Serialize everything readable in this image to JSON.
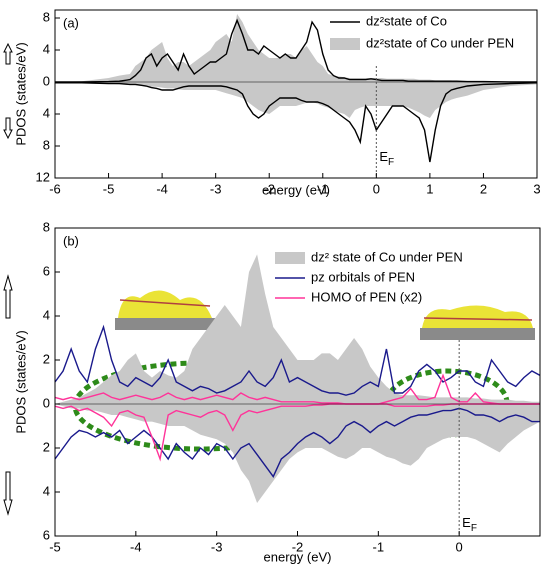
{
  "chart_data": [
    {
      "type": "pdos",
      "panel_label": "(a)",
      "xlabel": "energy (eV)",
      "ylabel": "PDOS (states/eV)",
      "xlim": [
        -6,
        3
      ],
      "ylim": [
        -12,
        9
      ],
      "xticks": [
        -6,
        -5,
        -4,
        -3,
        -2,
        -1,
        0,
        1,
        2,
        3
      ],
      "yticks": [
        8,
        4,
        0,
        {
          "value": -4,
          "label": "4"
        },
        {
          "value": -8,
          "label": "8"
        },
        {
          "value": -12,
          "label": "12"
        }
      ],
      "fermi_x": 0,
      "fermi_label": [
        "E",
        "F"
      ],
      "legend": "upper right",
      "x": [
        -6,
        -5.5,
        -5,
        -4.8,
        -4.6,
        -4.5,
        -4.4,
        -4.3,
        -4.2,
        -4.1,
        -4.0,
        -3.9,
        -3.8,
        -3.7,
        -3.6,
        -3.5,
        -3.4,
        -3.3,
        -3.2,
        -3.1,
        -3.0,
        -2.9,
        -2.8,
        -2.7,
        -2.6,
        -2.5,
        -2.4,
        -2.3,
        -2.2,
        -2.1,
        -2.0,
        -1.9,
        -1.8,
        -1.7,
        -1.6,
        -1.5,
        -1.4,
        -1.3,
        -1.2,
        -1.1,
        -1.0,
        -0.9,
        -0.8,
        -0.7,
        -0.6,
        -0.5,
        -0.4,
        -0.3,
        -0.2,
        -0.1,
        0,
        0.1,
        0.2,
        0.3,
        0.4,
        0.5,
        0.6,
        0.7,
        0.8,
        0.9,
        1.0,
        1.1,
        1.2,
        1.3,
        1.4,
        1.5,
        1.7,
        2,
        2.5,
        3
      ],
      "series": [
        {
          "name": "dz²state of Co under PEN",
          "color": "#c8c8c8",
          "style": "fill",
          "up": [
            0,
            0.1,
            0.5,
            0.8,
            1,
            2,
            2.5,
            3,
            4,
            4.5,
            5,
            3,
            2,
            2.5,
            2.5,
            2,
            2.5,
            3,
            3.5,
            4,
            5,
            5.5,
            6,
            5,
            8.5,
            7.5,
            6,
            5,
            4,
            3.5,
            3,
            3,
            3,
            3.5,
            3.5,
            3,
            4,
            4.5,
            3.5,
            2.5,
            2,
            1,
            0.8,
            0.7,
            0.6,
            0.5,
            0.5,
            0.5,
            0.5,
            0.5,
            0.5,
            0.5,
            0.4,
            0.4,
            0.4,
            0.4,
            0.4,
            0.4,
            0.3,
            0.3,
            0.3,
            0.2,
            0.2,
            0.2,
            0.2,
            0.1,
            0.1,
            0.1,
            0.05,
            0
          ],
          "down": [
            0,
            -0.1,
            -0.2,
            -0.3,
            -0.4,
            -0.4,
            -0.5,
            -0.5,
            -0.6,
            -0.6,
            -0.7,
            -0.8,
            -0.8,
            -0.9,
            -1,
            -1,
            -1,
            -1,
            -1,
            -1,
            -1,
            -1.2,
            -1.4,
            -1.6,
            -1.8,
            -2,
            -2.5,
            -3,
            -3.5,
            -3.8,
            -4,
            -3.5,
            -3,
            -3,
            -3,
            -3,
            -2.8,
            -2.6,
            -2.5,
            -2.7,
            -3,
            -3.2,
            -3.5,
            -3.8,
            -4,
            -4.5,
            -3.5,
            -3.2,
            -3,
            -3,
            -3,
            -3,
            -3,
            -3,
            -3,
            -3,
            -3.2,
            -3.5,
            -3.8,
            -4.2,
            -4.5,
            -3.5,
            -3,
            -2.5,
            -2.2,
            -2,
            -1.7,
            -1,
            -0.5,
            -0.3
          ]
        },
        {
          "name": "dz²state of Co",
          "color": "#000000",
          "style": "line",
          "up": [
            0,
            0,
            0.05,
            0.1,
            0.3,
            0.8,
            1.5,
            3,
            3.5,
            2,
            3,
            3.5,
            2.5,
            1.5,
            3.5,
            2,
            1,
            1.5,
            2,
            2.5,
            2.5,
            3,
            3.5,
            6,
            7.7,
            6,
            4,
            4,
            3.5,
            4.5,
            4,
            3.5,
            3,
            3.5,
            3,
            3,
            4,
            5,
            7.5,
            6.5,
            3.5,
            1.5,
            0.8,
            0.5,
            0.5,
            0.3,
            0.3,
            0.3,
            0.3,
            0.4,
            0.3,
            0.2,
            0.2,
            0.2,
            0.2,
            0.2,
            0.1,
            0.1,
            0.1,
            0.1,
            0.1,
            0.1,
            0.1,
            0.1,
            0.1,
            0.1,
            0.05,
            0.05,
            0,
            0
          ],
          "down": [
            -0.1,
            -0.1,
            -0.2,
            -0.2,
            -0.3,
            -0.3,
            -0.4,
            -0.5,
            -0.7,
            -0.8,
            -1,
            -1,
            -1,
            -0.8,
            -0.6,
            -0.5,
            -0.5,
            -0.5,
            -0.5,
            -0.5,
            -0.5,
            -0.5,
            -0.6,
            -0.8,
            -1,
            -1.5,
            -3,
            -4,
            -4.5,
            -4,
            -3,
            -2.5,
            -2,
            -2,
            -2,
            -2,
            -2.3,
            -2.5,
            -2.5,
            -2.5,
            -2.7,
            -3,
            -3.5,
            -4,
            -4.5,
            -5,
            -6,
            -7.5,
            -3,
            -4,
            -6,
            -5,
            -4,
            -3,
            -3,
            -3,
            -3.5,
            -4,
            -4.5,
            -6,
            -10,
            -6,
            -3,
            -1.5,
            -1,
            -0.8,
            -0.5,
            -0.3,
            -0.2,
            -0.1
          ]
        }
      ]
    },
    {
      "type": "pdos",
      "panel_label": "(b)",
      "xlabel": "energy (eV)",
      "ylabel": "PDOS (states/eV)",
      "xlim": [
        -5,
        1
      ],
      "ylim": [
        -6,
        8
      ],
      "xticks": [
        -5,
        -4,
        -3,
        -2,
        -1,
        0
      ],
      "yticks": [
        8,
        6,
        4,
        2,
        0,
        {
          "value": -2,
          "label": "2"
        },
        {
          "value": -4,
          "label": "4"
        },
        {
          "value": -6,
          "label": "6"
        }
      ],
      "fermi_x": 0,
      "fermi_label": [
        "E",
        "F"
      ],
      "legend": "upper right",
      "x": [
        -5.0,
        -4.9,
        -4.8,
        -4.7,
        -4.6,
        -4.5,
        -4.4,
        -4.3,
        -4.2,
        -4.1,
        -4.0,
        -3.9,
        -3.8,
        -3.7,
        -3.6,
        -3.5,
        -3.4,
        -3.3,
        -3.2,
        -3.1,
        -3.0,
        -2.9,
        -2.8,
        -2.7,
        -2.6,
        -2.5,
        -2.4,
        -2.3,
        -2.2,
        -2.1,
        -2.0,
        -1.9,
        -1.8,
        -1.7,
        -1.6,
        -1.5,
        -1.4,
        -1.3,
        -1.2,
        -1.1,
        -1.0,
        -0.9,
        -0.8,
        -0.7,
        -0.6,
        -0.5,
        -0.4,
        -0.3,
        -0.2,
        -0.1,
        0,
        0.1,
        0.2,
        0.3,
        0.4,
        0.5,
        0.6,
        0.7,
        0.8,
        0.9,
        1.0
      ],
      "series": [
        {
          "name": "dz² state of Co under PEN",
          "color": "#c8c8c8",
          "style": "fill",
          "up": [
            0,
            0.1,
            0.2,
            0.3,
            0.5,
            0.7,
            1,
            1.3,
            1.5,
            2,
            2.3,
            1.5,
            1.2,
            1.5,
            1.3,
            1.2,
            1.5,
            2.5,
            3,
            3.5,
            4,
            4.5,
            4,
            3.5,
            6,
            6.8,
            5,
            3.5,
            3,
            2.5,
            2,
            2,
            2,
            2.3,
            2.3,
            2,
            2.5,
            3,
            2.5,
            1.7,
            1.2,
            0.8,
            0.5,
            0.4,
            0.4,
            0.4,
            0.35,
            0.3,
            0.3,
            0.3,
            0.3,
            0.3,
            0.25,
            0.25,
            0.2,
            0.2,
            0.2,
            0.15,
            0.15,
            0.1,
            0.1
          ],
          "down": [
            0,
            -0.1,
            -0.2,
            -0.2,
            -0.3,
            -0.3,
            -0.4,
            -0.5,
            -0.5,
            -0.6,
            -0.7,
            -0.8,
            -0.8,
            -0.9,
            -1,
            -1,
            -1,
            -1.2,
            -1.4,
            -1.5,
            -1.6,
            -1.8,
            -2.2,
            -3,
            -3.5,
            -4.5,
            -4,
            -3.5,
            -3,
            -2.5,
            -2.2,
            -2,
            -2,
            -2,
            -2.2,
            -2.4,
            -2.5,
            -2.3,
            -2,
            -2,
            -2.2,
            -2.4,
            -2.5,
            -2.7,
            -2.8,
            -2.5,
            -2,
            -1.8,
            -1.6,
            -1.5,
            -1.5,
            -1.5,
            -1.6,
            -1.8,
            -2,
            -2.2,
            -1.8,
            -1.5,
            -1.2,
            -1,
            -0.8
          ]
        },
        {
          "name": "pz orbitals of PEN",
          "color": "#1a1a8c",
          "style": "line",
          "up": [
            1,
            1.5,
            2.5,
            1.5,
            1,
            2.5,
            3.5,
            2,
            1,
            0.8,
            1.2,
            1,
            0.8,
            1.2,
            2,
            1,
            0.8,
            0.6,
            0.8,
            0.7,
            0.5,
            0.6,
            0.8,
            1,
            1.5,
            1,
            0.8,
            1.2,
            2,
            1,
            1.2,
            1,
            0.8,
            0.6,
            0.5,
            0.5,
            0.4,
            0.5,
            0.8,
            1,
            0.8,
            2.5,
            0.5,
            0.5,
            0.8,
            1.5,
            1.8,
            1.5,
            1,
            1.2,
            1.5,
            1.5,
            1,
            0.8,
            2,
            1.5,
            1,
            0.8,
            1.2,
            1.5,
            1.3
          ],
          "down": [
            -2.5,
            -2,
            -1.5,
            -1.2,
            -1.3,
            -1.5,
            -1.3,
            -1.5,
            -1.2,
            -1.8,
            -1.5,
            -1.2,
            -1.5,
            -2,
            -2.5,
            -1.8,
            -2.2,
            -2.5,
            -2,
            -2.3,
            -1.8,
            -2,
            -2.5,
            -2,
            -1.8,
            -2.3,
            -2.8,
            -3.3,
            -2.5,
            -2.2,
            -1.8,
            -1.5,
            -1.3,
            -1.5,
            -1.8,
            -1.5,
            -1,
            -0.8,
            -1,
            -1.3,
            -1,
            -0.8,
            -1,
            -0.8,
            -0.6,
            -0.5,
            -0.5,
            -0.4,
            -0.3,
            -0.3,
            -0.2,
            -0.3,
            -0.5,
            -0.5,
            -0.6,
            -0.8,
            -0.6,
            -0.5,
            -0.6,
            -0.8,
            -0.8
          ]
        },
        {
          "name": "HOMO of PEN (x2)",
          "color": "#ff3399",
          "style": "line",
          "up": [
            0.3,
            0.2,
            0.3,
            0.2,
            0.3,
            0.4,
            0.5,
            0.3,
            0.2,
            0.3,
            0.4,
            0.3,
            0.2,
            0.3,
            0.5,
            0.3,
            0.2,
            0.3,
            0.2,
            0.3,
            0.4,
            0.3,
            0.2,
            0.5,
            0.3,
            0.2,
            0.3,
            0.2,
            0.1,
            0.1,
            0.1,
            0.1,
            0.1,
            0.05,
            0.05,
            0.05,
            0,
            0,
            0,
            0,
            0,
            0.1,
            0.2,
            0.3,
            0.7,
            0.2,
            0.2,
            0.3,
            1.3,
            0.3,
            0.1,
            0.1,
            0.5,
            0.1,
            0.05,
            0,
            0,
            0,
            0,
            0,
            0
          ],
          "down": [
            -0.1,
            -0.2,
            -0.1,
            -0.3,
            -0.2,
            -0.4,
            -0.6,
            -1,
            -0.4,
            -0.3,
            -0.5,
            -0.6,
            -1.5,
            -2.5,
            -0.5,
            -0.3,
            -0.4,
            -0.5,
            -0.6,
            -0.4,
            -0.3,
            -0.5,
            -1.2,
            -0.5,
            -0.3,
            -0.4,
            -0.3,
            -0.2,
            -0.1,
            -0.1,
            -0.1,
            -0.1,
            -0.05,
            -0.05,
            0,
            0,
            0,
            0,
            0,
            0,
            0,
            0,
            -0.1,
            -0.1,
            -0.1,
            -0.1,
            -0.1,
            -0.05,
            -0.05,
            0,
            0,
            0,
            0,
            0,
            0,
            0,
            0,
            0,
            0,
            0,
            0
          ]
        }
      ]
    }
  ]
}
